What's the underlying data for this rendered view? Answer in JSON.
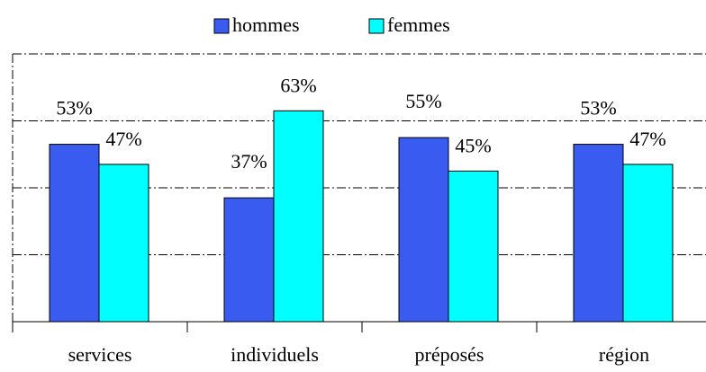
{
  "chart_data": {
    "type": "bar",
    "categories": [
      "services",
      "individuels",
      "préposés",
      "région"
    ],
    "series": [
      {
        "name": "hommes",
        "color": "#3a5bf0",
        "values": [
          53,
          37,
          55,
          53
        ],
        "value_labels": [
          "53%",
          "37%",
          "55%",
          "53%"
        ]
      },
      {
        "name": "femmes",
        "color": "#00ffff",
        "values": [
          47,
          63,
          45,
          47
        ],
        "value_labels": [
          "47%",
          "63%",
          "45%",
          "47%"
        ]
      }
    ],
    "ylim": [
      0,
      80
    ],
    "yticks": [
      0,
      20,
      40,
      60,
      80
    ],
    "grid": true,
    "legend": "top"
  }
}
